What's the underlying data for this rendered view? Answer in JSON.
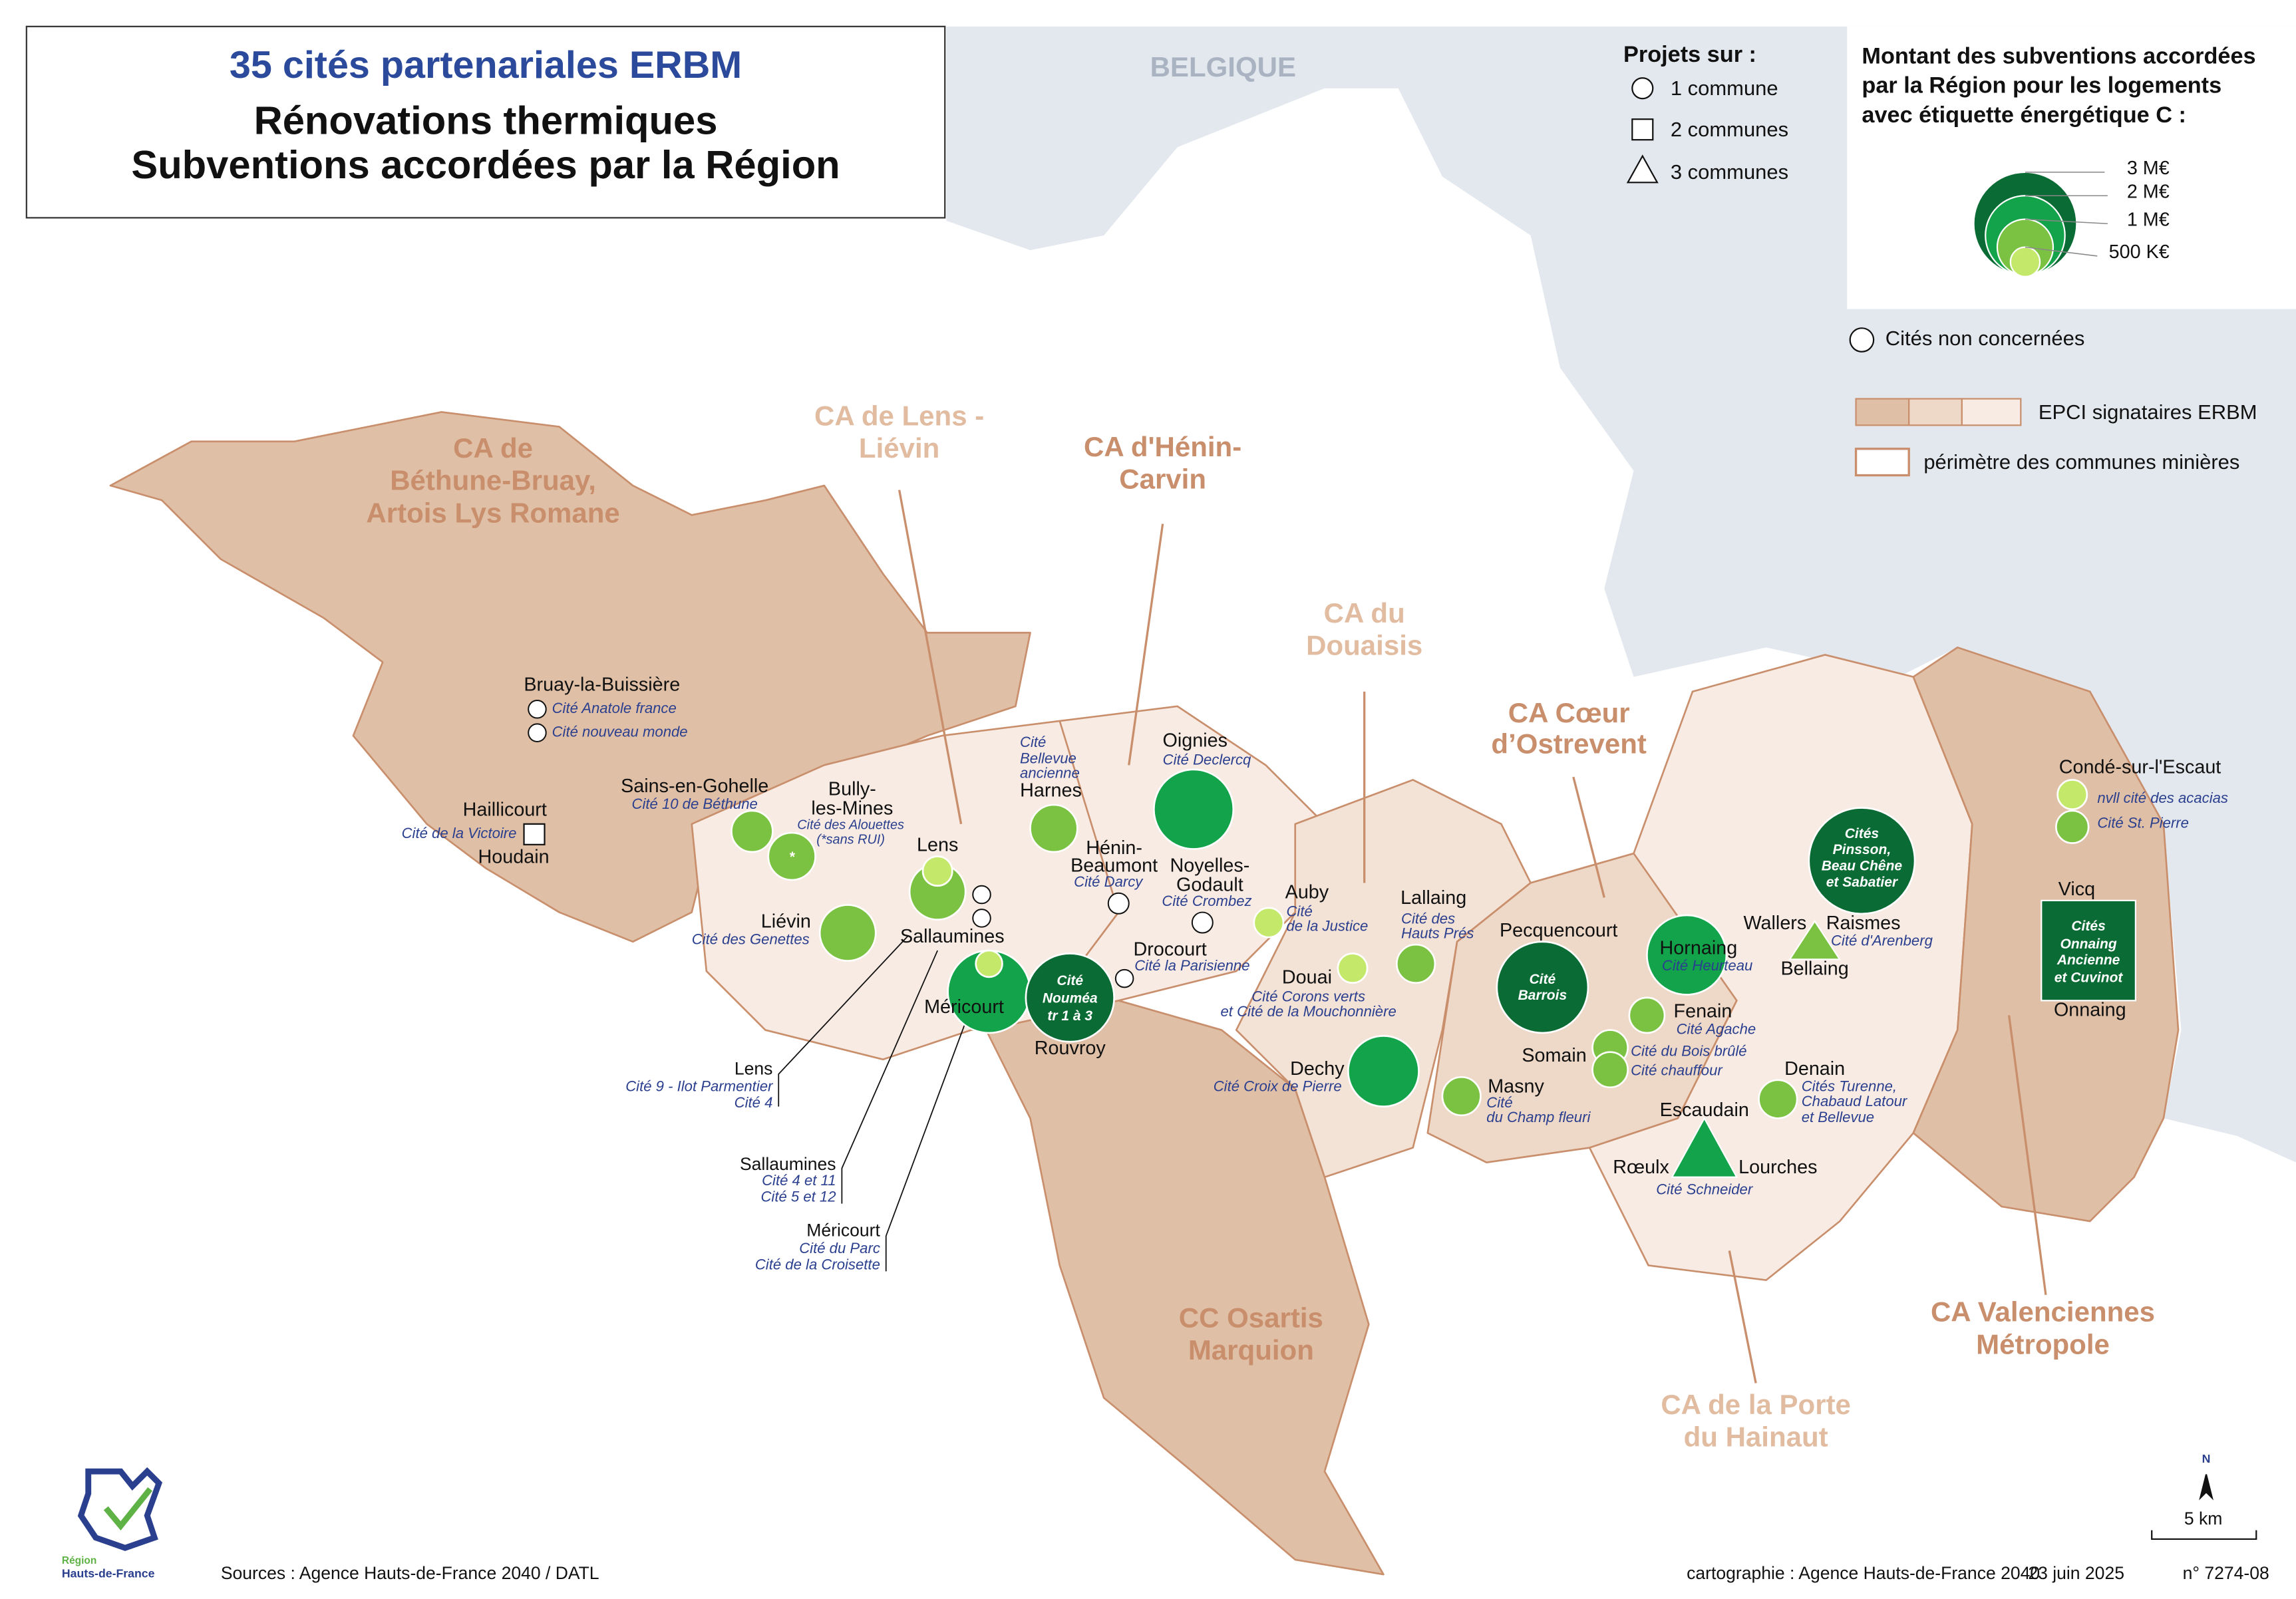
{
  "title": {
    "highlight": "35 cités partenariales ERBM",
    "lines": [
      "Rénovations thermiques",
      "Subventions accordées par la Région"
    ]
  },
  "neighbour": "BELGIQUE",
  "legend": {
    "projects_title": "Projets sur :",
    "projects": [
      "1 commune",
      "2 communes",
      "3 communes"
    ],
    "amount_title": [
      "Montant des subventions accordées",
      "par la Région pour les logements",
      "avec étiquette énergétique C :"
    ],
    "amounts": [
      "3 M€",
      "2 M€",
      "1 M€",
      "500 K€"
    ],
    "not_concerned": "Cités non concernées",
    "epci": "EPCI signataires ERBM",
    "perimeter": "périmètre des communes minières"
  },
  "epci": [
    [
      "CA de",
      "Béthune-Bruay,",
      "Artois Lys Romane"
    ],
    [
      "CA de Lens -",
      "Liévin"
    ],
    [
      "CA d'Hénin-",
      "Carvin"
    ],
    [
      "CA du",
      "Douaisis"
    ],
    [
      "CA Cœur",
      "d’Ostrevent"
    ],
    [
      "CC Osartis",
      "Marquion"
    ],
    [
      "CA de la Porte",
      "du Hainaut"
    ],
    [
      "CA Valenciennes",
      "Métropole"
    ]
  ],
  "places": [
    {
      "communes": [
        "Bruay-la-Buissière"
      ],
      "cites": [
        "Cité Anatole france",
        "Cité nouveau monde"
      ]
    },
    {
      "communes": [
        "Haillicourt",
        "Houdain"
      ],
      "cites": [
        "Cité de la Victoire"
      ]
    },
    {
      "communes": [
        "Sains-en-Gohelle"
      ],
      "cites": [
        "Cité 10 de Béthune"
      ]
    },
    {
      "communes": [
        "Bully-",
        "les-Mines"
      ],
      "cites": [
        "Cité des Alouettes",
        "(*sans RUI)"
      ],
      "symbol_text": [
        "*"
      ]
    },
    {
      "communes": [
        "Liévin"
      ],
      "cites": [
        "Cité des Genettes"
      ]
    },
    {
      "communes": [
        "Lens"
      ],
      "cites": [
        "Cité 9 - Ilot Parmentier",
        "Cité 4"
      ]
    },
    {
      "communes": [
        "Sallaumines"
      ],
      "cites": [
        "Cité 4 et 11",
        "Cité 5 et 12"
      ]
    },
    {
      "communes": [
        "Méricourt"
      ],
      "cites": [
        "Cité du Parc",
        "Cité de la Croisette"
      ]
    },
    {
      "communes": [
        "Harnes"
      ],
      "cites": [
        "Cité",
        "Bellevue",
        "ancienne"
      ]
    },
    {
      "communes": [
        "Oignies"
      ],
      "cites": [
        "Cité Declercq"
      ]
    },
    {
      "communes": [
        "Hénin-",
        "Beaumont"
      ],
      "cites": [
        "Cité Darcy"
      ]
    },
    {
      "communes": [
        "Noyelles-",
        "Godault"
      ],
      "cites": [
        "Cité Crombez"
      ]
    },
    {
      "communes": [
        "Drocourt"
      ],
      "cites": [
        "Cité la Parisienne"
      ]
    },
    {
      "communes": [
        "Rouvroy"
      ],
      "symbol_text": [
        "Cité",
        "Nouméa",
        "tr 1 à 3"
      ]
    },
    {
      "communes": [
        "Auby"
      ],
      "cites": [
        "Cité",
        "de la Justice"
      ]
    },
    {
      "communes": [
        "Lallaing"
      ],
      "cites": [
        "Cité des",
        "Hauts Prés"
      ]
    },
    {
      "communes": [
        "Douai"
      ],
      "cites": [
        "Cité Corons verts",
        "et Cité de la Mouchonnière"
      ]
    },
    {
      "communes": [
        "Dechy"
      ],
      "cites": [
        "Cité Croix de Pierre"
      ]
    },
    {
      "communes": [
        "Pecquencourt"
      ],
      "symbol_text": [
        "Cité",
        "Barrois"
      ]
    },
    {
      "communes": [
        "Hornaing"
      ],
      "cites": [
        "Cité Heurteau"
      ]
    },
    {
      "communes": [
        "Fenain"
      ],
      "cites": [
        "Cité Agache"
      ]
    },
    {
      "communes": [
        "Somain"
      ],
      "cites": [
        "Cité du Bois brûlé",
        "Cité chauffour"
      ]
    },
    {
      "communes": [
        "Masny"
      ],
      "cites": [
        "Cité",
        "du Champ fleuri"
      ]
    },
    {
      "communes": [
        "Escaudain",
        "Rœulx",
        "Lourches"
      ],
      "cites": [
        "Cité Schneider"
      ]
    },
    {
      "communes": [
        "Denain"
      ],
      "cites": [
        "Cités Turenne,",
        "Chabaud Latour",
        "et Bellevue"
      ]
    },
    {
      "symbol_text": [
        "Cités",
        "Pinsson,",
        "Beau Chêne",
        "et Sabatier"
      ]
    },
    {
      "communes": [
        "Wallers",
        "Raismes",
        "Bellaing"
      ],
      "cites": [
        "Cité d'Arenberg"
      ]
    },
    {
      "communes": [
        "Condé-sur-l'Escaut"
      ],
      "cites": [
        "nvll cité des acacias",
        "Cité St. Pierre"
      ]
    },
    {
      "communes": [
        "Vicq",
        "Onnaing"
      ],
      "symbol_text": [
        "Cités",
        "Onnaing",
        "Ancienne",
        "et Cuvinot"
      ]
    }
  ],
  "footer": {
    "sources": "Sources : Agence Hauts-de-France 2040 / DATL",
    "credit": "cartographie : Agence Hauts-de-France 2040",
    "date": "23 juin 2025",
    "ref": "n° 7274-08",
    "scale": "5 km",
    "north": "N",
    "logo": [
      "Région",
      "Hauts-de-France"
    ]
  }
}
